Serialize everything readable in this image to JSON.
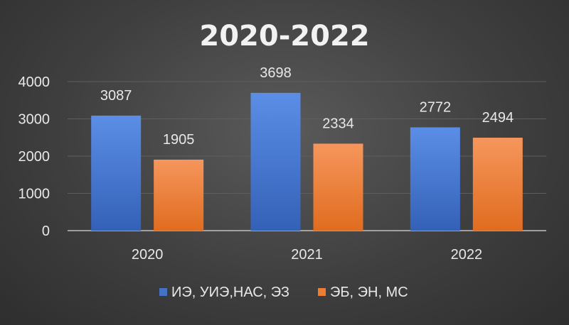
{
  "chart_data": {
    "type": "bar",
    "title": "2020-2022",
    "categories": [
      "2020",
      "2021",
      "2022"
    ],
    "series": [
      {
        "name": "ИЭ, УИЭ,НАС, ЭЗ",
        "values": [
          3087,
          3698,
          2772
        ],
        "color": "#4472c4"
      },
      {
        "name": "ЭБ, ЭН, МС",
        "values": [
          1905,
          2334,
          2494
        ],
        "color": "#ed7d31"
      }
    ],
    "y_ticks": [
      0,
      1000,
      2000,
      3000,
      4000
    ],
    "ylim": [
      0,
      4000
    ],
    "grid": true,
    "legend_position": "bottom",
    "data_labels": true,
    "background": "#404040"
  }
}
